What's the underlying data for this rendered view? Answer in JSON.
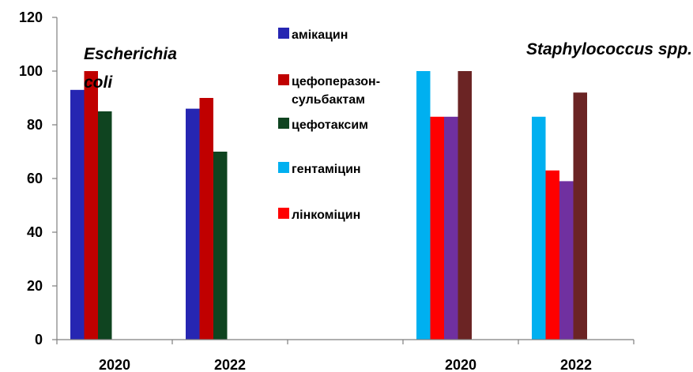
{
  "chart_data": {
    "type": "bar",
    "categories": [
      "2020",
      "2022",
      "",
      "2020",
      "2022"
    ],
    "ylim": [
      0,
      120
    ],
    "yticks": [
      0,
      20,
      40,
      60,
      80,
      100,
      120
    ],
    "grid": false,
    "legend_position": "center",
    "annotations": [
      {
        "text_lines": [
          "Escherichia",
          "coli"
        ]
      },
      {
        "text_lines": [
          "Staphylococcus spp."
        ]
      }
    ],
    "series": [
      {
        "name": "амікацин",
        "color": "#2626B2",
        "values": [
          93,
          86,
          null,
          null,
          null
        ]
      },
      {
        "name": "цефоперазон-сульбактам",
        "name_lines": [
          "цефоперазон-",
          "сульбактам"
        ],
        "color": "#C00000",
        "values": [
          100,
          90,
          null,
          null,
          null
        ]
      },
      {
        "name": "цефотаксим",
        "color": "#0F4420",
        "values": [
          85,
          70,
          null,
          null,
          null
        ]
      },
      {
        "name": "гентаміцин",
        "color": "#00B0F0",
        "values": [
          null,
          null,
          null,
          100,
          83
        ]
      },
      {
        "name": "лінкоміцин",
        "color": "#FF0000",
        "values": [
          null,
          null,
          null,
          83,
          63
        ]
      },
      {
        "name": "",
        "color": "#7030A0",
        "values": [
          null,
          null,
          null,
          83,
          59
        ]
      },
      {
        "name": "",
        "color": "#6B2424",
        "values": [
          null,
          null,
          null,
          100,
          92
        ]
      }
    ]
  }
}
